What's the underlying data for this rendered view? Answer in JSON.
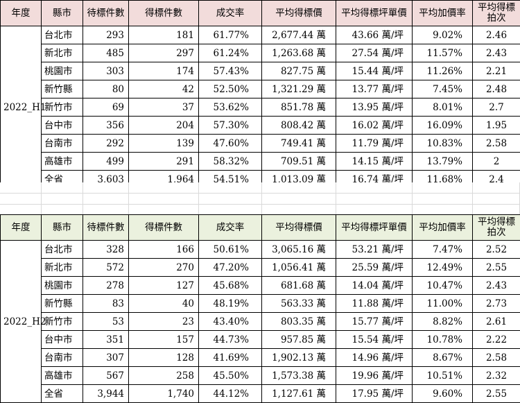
{
  "headers": [
    "年度",
    "縣市",
    "待標件數",
    "得標件數",
    "成交率",
    "平均得標價",
    "平均得標坪單價",
    "平均加價率",
    "平均得標拍次"
  ],
  "tables": [
    {
      "year": "2022_H1",
      "rows": [
        {
          "city": "台北市",
          "pending": "293",
          "won": "181",
          "rate": "61.77%",
          "avg_price": "2,677.44 萬",
          "unit_price": "43.66 萬/坪",
          "markup": "9.02%",
          "bids": "2.46"
        },
        {
          "city": "新北市",
          "pending": "485",
          "won": "297",
          "rate": "61.24%",
          "avg_price": "1,263.68 萬",
          "unit_price": "27.54 萬/坪",
          "markup": "11.57%",
          "bids": "2.43"
        },
        {
          "city": "桃園市",
          "pending": "303",
          "won": "174",
          "rate": "57.43%",
          "avg_price": "827.75 萬",
          "unit_price": "15.44 萬/坪",
          "markup": "11.26%",
          "bids": "2.21"
        },
        {
          "city": "新竹縣",
          "pending": "80",
          "won": "42",
          "rate": "52.50%",
          "avg_price": "1,321.29 萬",
          "unit_price": "13.77 萬/坪",
          "markup": "7.45%",
          "bids": "2.48"
        },
        {
          "city": "新竹市",
          "pending": "69",
          "won": "37",
          "rate": "53.62%",
          "avg_price": "851.78 萬",
          "unit_price": "13.95 萬/坪",
          "markup": "8.01%",
          "bids": "2.7"
        },
        {
          "city": "台中市",
          "pending": "356",
          "won": "204",
          "rate": "57.30%",
          "avg_price": "808.42 萬",
          "unit_price": "16.02 萬/坪",
          "markup": "16.09%",
          "bids": "1.95"
        },
        {
          "city": "台南市",
          "pending": "292",
          "won": "139",
          "rate": "47.60%",
          "avg_price": "749.41 萬",
          "unit_price": "11.79 萬/坪",
          "markup": "10.83%",
          "bids": "2.58"
        },
        {
          "city": "高雄市",
          "pending": "499",
          "won": "291",
          "rate": "58.32%",
          "avg_price": "709.51 萬",
          "unit_price": "14.15 萬/坪",
          "markup": "13.79%",
          "bids": "2"
        },
        {
          "city": "全省",
          "pending": "3,603",
          "won": "1,964",
          "rate": "54.51%",
          "avg_price": "1,013.09 萬",
          "unit_price": "16.74 萬/坪",
          "markup": "11.68%",
          "bids": "2.4"
        }
      ]
    },
    {
      "year": "2022_H2",
      "rows": [
        {
          "city": "台北市",
          "pending": "328",
          "won": "166",
          "rate": "50.61%",
          "avg_price": "3,065.16 萬",
          "unit_price": "53.21 萬/坪",
          "markup": "7.47%",
          "bids": "2.52"
        },
        {
          "city": "新北市",
          "pending": "572",
          "won": "270",
          "rate": "47.20%",
          "avg_price": "1,056.41 萬",
          "unit_price": "25.59 萬/坪",
          "markup": "12.49%",
          "bids": "2.55"
        },
        {
          "city": "桃園市",
          "pending": "278",
          "won": "127",
          "rate": "45.68%",
          "avg_price": "681.68 萬",
          "unit_price": "14.04 萬/坪",
          "markup": "10.47%",
          "bids": "2.43"
        },
        {
          "city": "新竹縣",
          "pending": "83",
          "won": "40",
          "rate": "48.19%",
          "avg_price": "563.33 萬",
          "unit_price": "11.88 萬/坪",
          "markup": "11.00%",
          "bids": "2.73"
        },
        {
          "city": "新竹市",
          "pending": "53",
          "won": "23",
          "rate": "43.40%",
          "avg_price": "803.35 萬",
          "unit_price": "15.77 萬/坪",
          "markup": "8.82%",
          "bids": "2.61"
        },
        {
          "city": "台中市",
          "pending": "351",
          "won": "157",
          "rate": "44.73%",
          "avg_price": "957.85 萬",
          "unit_price": "15.54 萬/坪",
          "markup": "10.78%",
          "bids": "2.22"
        },
        {
          "city": "台南市",
          "pending": "307",
          "won": "128",
          "rate": "41.69%",
          "avg_price": "1,902.13 萬",
          "unit_price": "14.96 萬/坪",
          "markup": "8.67%",
          "bids": "2.58"
        },
        {
          "city": "高雄市",
          "pending": "567",
          "won": "258",
          "rate": "45.50%",
          "avg_price": "1,573.38 萬",
          "unit_price": "19.96 萬/坪",
          "markup": "10.51%",
          "bids": "2.32"
        },
        {
          "city": "全省",
          "pending": "3,944",
          "won": "1,740",
          "rate": "44.12%",
          "avg_price": "1,127.61 萬",
          "unit_price": "17.95 萬/坪",
          "markup": "9.60%",
          "bids": "2.55"
        }
      ]
    }
  ],
  "colors": {
    "h1_header_bg": "#f2dcdb",
    "h2_header_bg": "#ebf1de",
    "gridline": "#d9d9d9"
  }
}
